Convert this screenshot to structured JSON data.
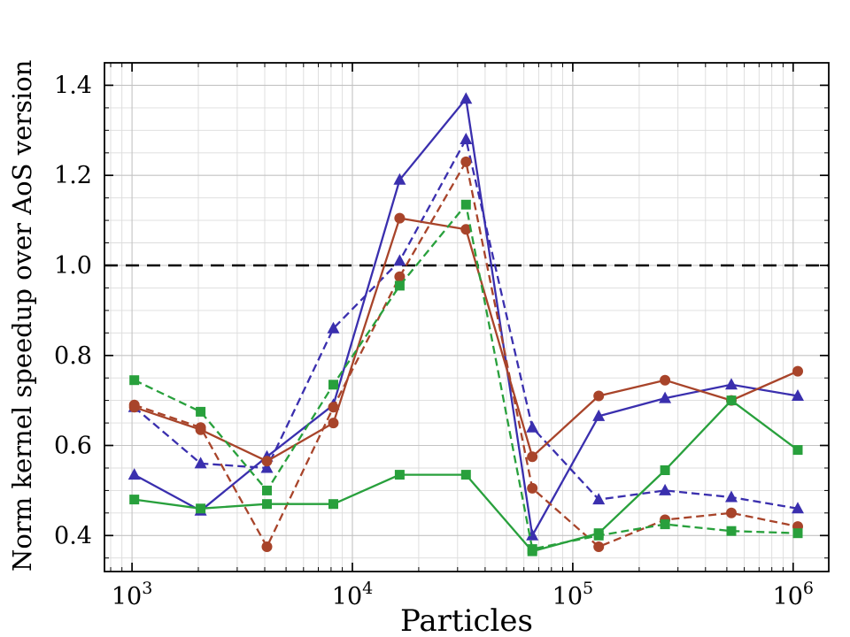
{
  "chart_data": {
    "type": "line",
    "title": "",
    "xlabel": "Particles",
    "ylabel": "Norm kernel speedup over AoS version",
    "xscale": "log",
    "xlim": [
      750,
      1450000
    ],
    "ylim": [
      0.32,
      1.45
    ],
    "yticks": [
      0.4,
      0.6,
      0.8,
      1.0,
      1.2,
      1.4
    ],
    "xtick_exponents": [
      3,
      4,
      5,
      6
    ],
    "grid": true,
    "legend_position": "none",
    "reference_line": {
      "y": 1.0,
      "color": "#000000",
      "style": "dashed"
    },
    "x": [
      1024,
      2048,
      4096,
      8192,
      16384,
      32768,
      65536,
      131072,
      262144,
      524288,
      1048576
    ],
    "series": [
      {
        "name": "indigo-triangle-solid",
        "color": "#3a2fae",
        "marker": "triangle",
        "style": "solid",
        "values": [
          0.535,
          0.455,
          0.575,
          0.69,
          1.19,
          1.37,
          0.4,
          0.665,
          0.705,
          0.735,
          0.71
        ]
      },
      {
        "name": "indigo-triangle-dashed",
        "color": "#3a2fae",
        "marker": "triangle",
        "style": "dashed",
        "values": [
          0.685,
          0.56,
          0.55,
          0.86,
          1.01,
          1.28,
          0.64,
          0.48,
          0.5,
          0.485,
          0.46
        ]
      },
      {
        "name": "brown-circle-solid",
        "color": "#a8442a",
        "marker": "circle",
        "style": "solid",
        "values": [
          0.685,
          0.635,
          0.565,
          0.65,
          1.105,
          1.08,
          0.575,
          0.71,
          0.745,
          0.7,
          0.765
        ]
      },
      {
        "name": "brown-circle-dashed",
        "color": "#a8442a",
        "marker": "circle",
        "style": "dashed",
        "values": [
          0.69,
          0.64,
          0.375,
          0.685,
          0.975,
          1.23,
          0.505,
          0.375,
          0.435,
          0.45,
          0.42
        ]
      },
      {
        "name": "green-square-solid",
        "color": "#28a03c",
        "marker": "square",
        "style": "solid",
        "values": [
          0.48,
          0.46,
          0.47,
          0.47,
          0.535,
          0.535,
          0.365,
          0.405,
          0.545,
          0.7,
          0.59
        ]
      },
      {
        "name": "green-square-dashed",
        "color": "#28a03c",
        "marker": "square",
        "style": "dashed",
        "values": [
          0.745,
          0.675,
          0.5,
          0.735,
          0.955,
          1.135,
          0.37,
          0.4,
          0.425,
          0.41,
          0.405
        ]
      }
    ]
  }
}
